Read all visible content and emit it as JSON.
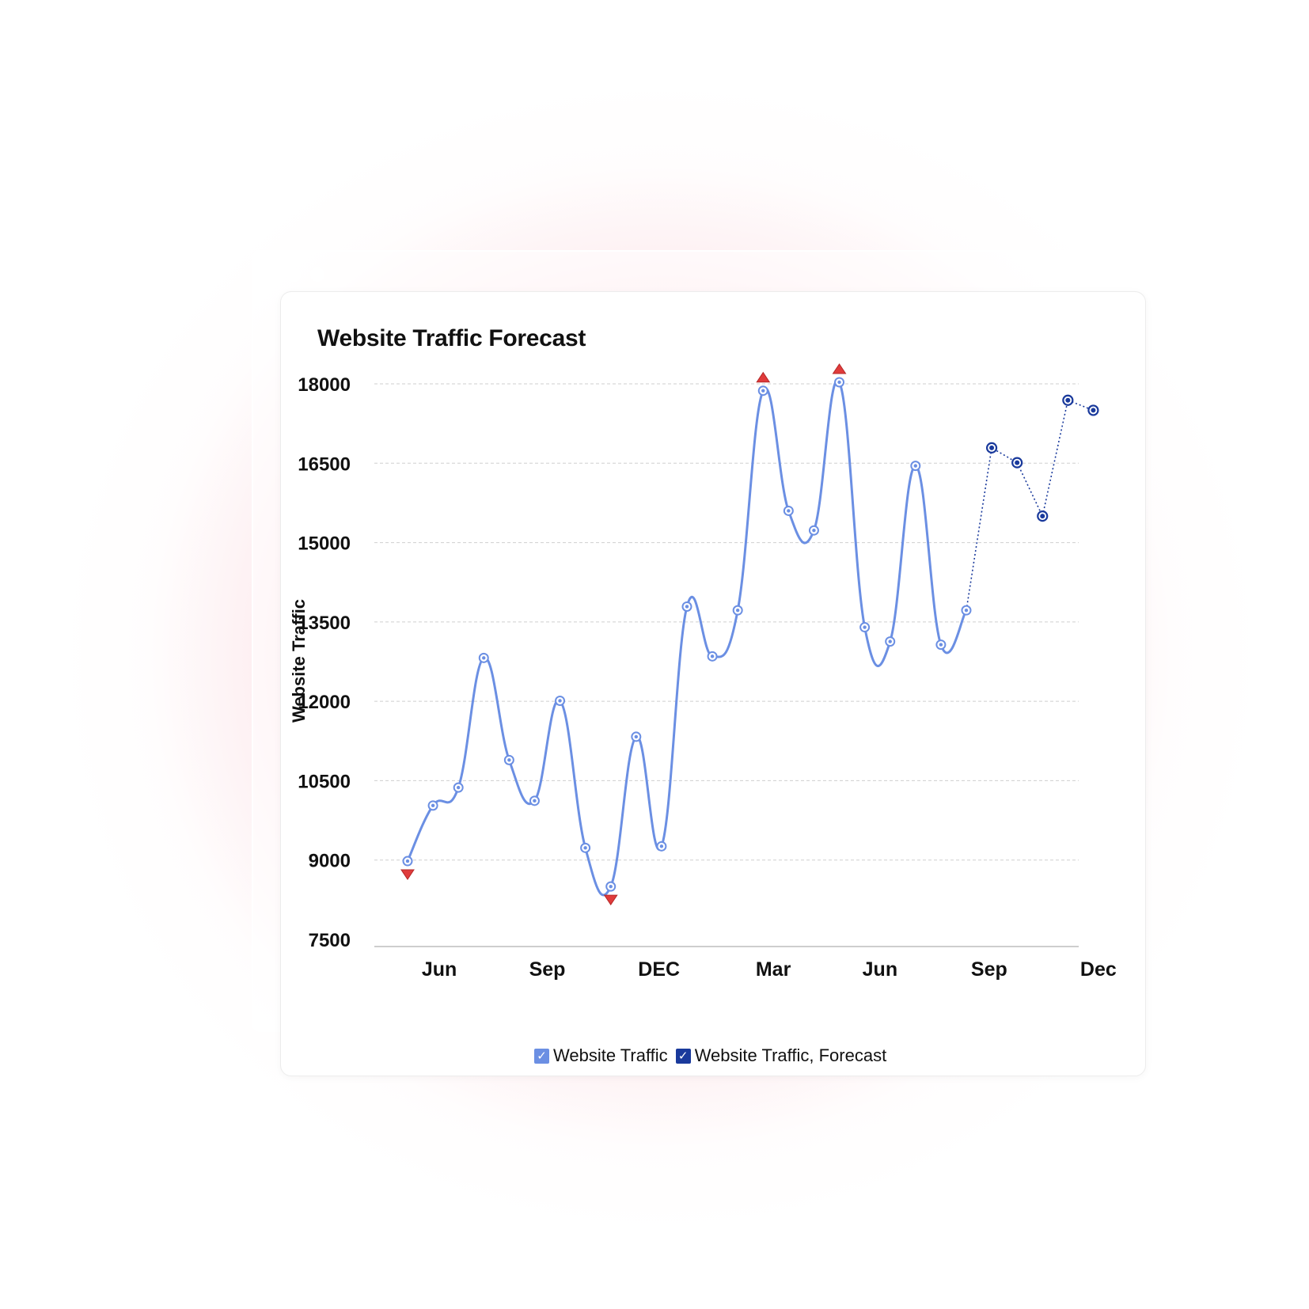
{
  "window": {
    "controls": [
      "dot",
      "dot",
      "dot"
    ]
  },
  "chart_data": {
    "type": "line",
    "title": "Website Traffic Forecast",
    "xlabel": "",
    "ylabel": "Website Traffic",
    "ylim": [
      7500,
      18000
    ],
    "yticks": [
      7500,
      9000,
      10500,
      12000,
      13500,
      15000,
      16500,
      18000
    ],
    "xticks": [
      {
        "label": "Jun",
        "index": 1.25
      },
      {
        "label": "Sep",
        "index": 5.5
      },
      {
        "label": "DEC",
        "index": 9.9
      },
      {
        "label": "Mar",
        "index": 14.4
      },
      {
        "label": "Jun",
        "index": 18.6
      },
      {
        "label": "Sep",
        "index": 22.9
      },
      {
        "label": "Dec",
        "index": 27.2
      }
    ],
    "grid": true,
    "legend_position": "bottom",
    "series": [
      {
        "name": "Website Traffic",
        "color": "#6b8fe3",
        "style": "smooth-solid",
        "start_index": 0,
        "values": [
          8980,
          10030,
          10370,
          12820,
          10890,
          10120,
          12010,
          9230,
          8500,
          11330,
          9260,
          13790,
          12850,
          13720,
          17870,
          15600,
          15230,
          18030,
          13400,
          13130,
          16450,
          13070,
          13720
        ]
      },
      {
        "name": "Website Traffic, Forecast",
        "color": "#1a3a9c",
        "style": "dotted",
        "start_index": 22,
        "values": [
          13720,
          16790,
          16510,
          15500,
          17690,
          17500
        ]
      }
    ],
    "anomalies": [
      {
        "index": 0,
        "direction": "down"
      },
      {
        "index": 8,
        "direction": "down"
      },
      {
        "index": 14,
        "direction": "up"
      },
      {
        "index": 17,
        "direction": "up"
      }
    ],
    "anomaly_color": "#e03b3b"
  },
  "legend": [
    {
      "label": "Website Traffic",
      "color": "#6b8fe3",
      "check": "✓"
    },
    {
      "label": "Website Traffic, Forecast",
      "color": "#1a3a9c",
      "check": "✓"
    }
  ]
}
